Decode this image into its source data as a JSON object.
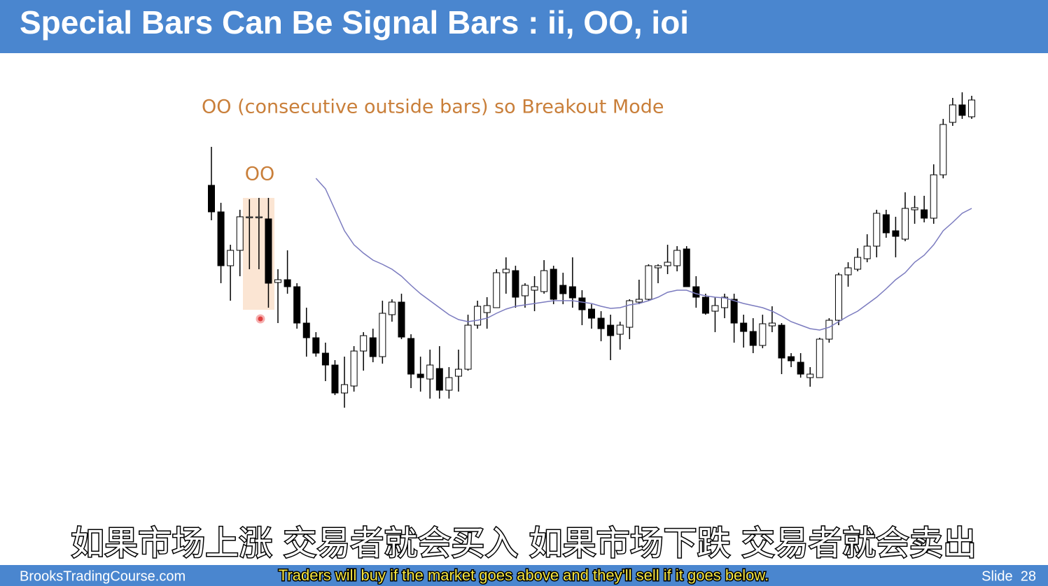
{
  "header": {
    "title": "Special Bars Can Be Signal Bars : ii, OO, ioi"
  },
  "annotations": {
    "main": "OO (consecutive outside bars) so Breakout Mode",
    "oo": "OO"
  },
  "subtitles": {
    "chinese": "如果市场上涨 交易者就会买入 如果市场下跌 交易者就会卖出",
    "english": "Traders will buy if the market goes above  and they'll sell if it goes below."
  },
  "footer": {
    "site": "BrooksTradingCourse.com",
    "slide": "Slide  28"
  },
  "chart_data": {
    "type": "candlestick",
    "up_color": "#ffffff",
    "down_color": "#000000",
    "ylim": [
      0,
      600
    ],
    "open": [
      335,
      297,
      220,
      242,
      290,
      290,
      287,
      196,
      200,
      190,
      138,
      117,
      95,
      78,
      38,
      48,
      98,
      117,
      90,
      150,
      168,
      116,
      65,
      58,
      73,
      42,
      62,
      72,
      135,
      153,
      160,
      210,
      213,
      177,
      185,
      183,
      215,
      192,
      190,
      174,
      158,
      145,
      135,
      122,
      132,
      168,
      172,
      217,
      220,
      220,
      244,
      190,
      175,
      155,
      160,
      172,
      138,
      126,
      106,
      134,
      135,
      90,
      82,
      60,
      60,
      115,
      142,
      207,
      215,
      230,
      248,
      293,
      270,
      258,
      300,
      300,
      288,
      350,
      425,
      450,
      433
    ],
    "high": [
      390,
      310,
      250,
      300,
      315,
      317,
      317,
      215,
      242,
      195,
      160,
      125,
      110,
      85,
      90,
      105,
      125,
      130,
      170,
      172,
      180,
      122,
      90,
      100,
      105,
      75,
      100,
      150,
      170,
      175,
      215,
      232,
      220,
      195,
      205,
      228,
      220,
      210,
      232,
      185,
      165,
      155,
      150,
      140,
      172,
      200,
      222,
      222,
      250,
      248,
      248,
      205,
      180,
      175,
      180,
      180,
      150,
      145,
      150,
      162,
      138,
      95,
      95,
      75,
      117,
      145,
      210,
      225,
      245,
      265,
      300,
      300,
      290,
      325,
      320,
      320,
      365,
      430,
      460,
      468,
      463
    ],
    "low": [
      285,
      195,
      170,
      205,
      215,
      215,
      160,
      138,
      180,
      130,
      90,
      90,
      55,
      35,
      17,
      40,
      70,
      82,
      80,
      140,
      115,
      45,
      40,
      30,
      30,
      30,
      40,
      70,
      130,
      130,
      160,
      180,
      160,
      160,
      155,
      180,
      165,
      165,
      160,
      135,
      130,
      112,
      85,
      100,
      115,
      165,
      170,
      195,
      208,
      212,
      190,
      160,
      150,
      125,
      145,
      110,
      103,
      95,
      102,
      125,
      65,
      75,
      60,
      47,
      60,
      110,
      135,
      190,
      212,
      225,
      232,
      260,
      232,
      255,
      280,
      282,
      280,
      345,
      420,
      430,
      430
    ],
    "close": [
      297,
      220,
      242,
      290,
      290,
      290,
      195,
      200,
      190,
      138,
      117,
      95,
      78,
      38,
      50,
      98,
      120,
      90,
      152,
      168,
      118,
      65,
      60,
      78,
      42,
      60,
      72,
      135,
      162,
      163,
      210,
      215,
      175,
      192,
      190,
      213,
      172,
      180,
      174,
      157,
      145,
      130,
      120,
      135,
      170,
      172,
      220,
      220,
      225,
      242,
      190,
      175,
      152,
      163,
      175,
      138,
      126,
      106,
      137,
      138,
      88,
      84,
      65,
      65,
      115,
      142,
      207,
      217,
      232,
      248,
      295,
      267,
      262,
      302,
      303,
      288,
      350,
      422,
      450,
      435,
      457
    ],
    "line": {
      "color": "#7b7bbf",
      "values": [
        null,
        null,
        null,
        null,
        null,
        null,
        null,
        null,
        null,
        null,
        null,
        345,
        330,
        300,
        270,
        250,
        238,
        228,
        222,
        215,
        205,
        192,
        180,
        170,
        160,
        150,
        143,
        140,
        142,
        145,
        152,
        158,
        162,
        164,
        166,
        168,
        170,
        170,
        170,
        168,
        166,
        162,
        159,
        160,
        164,
        166,
        170,
        175,
        182,
        185,
        185,
        180,
        177,
        175,
        174,
        170,
        166,
        163,
        160,
        155,
        148,
        140,
        135,
        130,
        128,
        132,
        140,
        148,
        155,
        165,
        175,
        187,
        200,
        210,
        225,
        235,
        250,
        270,
        282,
        295,
        302
      ]
    }
  }
}
